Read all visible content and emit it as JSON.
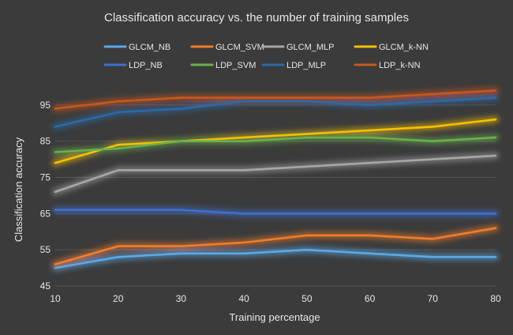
{
  "chart_data": {
    "type": "line",
    "title": "Classification accuracy vs. the number of training samples",
    "xlabel": "Training percentage",
    "ylabel": "Classification accuracy",
    "x": [
      10,
      20,
      30,
      40,
      50,
      60,
      70,
      80
    ],
    "xlim": [
      10,
      80
    ],
    "ylim": [
      45,
      100
    ],
    "xticks": [
      "10",
      "20",
      "30",
      "40",
      "50",
      "60",
      "70",
      "80"
    ],
    "yticks": [
      "45",
      "55",
      "65",
      "75",
      "85",
      "95"
    ],
    "grid": "horizontal",
    "legend_position": "top",
    "series": [
      {
        "name": "GLCM_NB",
        "color": "#5aa9e6",
        "values": [
          50,
          53,
          54,
          54,
          55,
          54,
          53,
          53
        ]
      },
      {
        "name": "GLCM_SVM",
        "color": "#f07d2a",
        "values": [
          51,
          56,
          56,
          57,
          59,
          59,
          58,
          61
        ]
      },
      {
        "name": "GLCM_MLP",
        "color": "#a6a6a6",
        "values": [
          71,
          77,
          77,
          77,
          78,
          79,
          80,
          81
        ]
      },
      {
        "name": "GLCM_k-NN",
        "color": "#f5c000",
        "values": [
          79,
          84,
          85,
          86,
          87,
          88,
          89,
          91
        ]
      },
      {
        "name": "LDP_NB",
        "color": "#3d6fd1",
        "values": [
          66,
          66,
          66,
          65,
          65,
          65,
          65,
          65
        ]
      },
      {
        "name": "LDP_SVM",
        "color": "#6ab04c",
        "values": [
          82,
          83,
          85,
          85,
          86,
          86,
          85,
          86
        ]
      },
      {
        "name": "LDP_MLP",
        "color": "#2b6aa6",
        "values": [
          89,
          93,
          94,
          96,
          96,
          95,
          96,
          97
        ]
      },
      {
        "name": "LDP_k-NN",
        "color": "#c9561a",
        "values": [
          94,
          96,
          97,
          97,
          97,
          97,
          98,
          99
        ]
      }
    ]
  }
}
